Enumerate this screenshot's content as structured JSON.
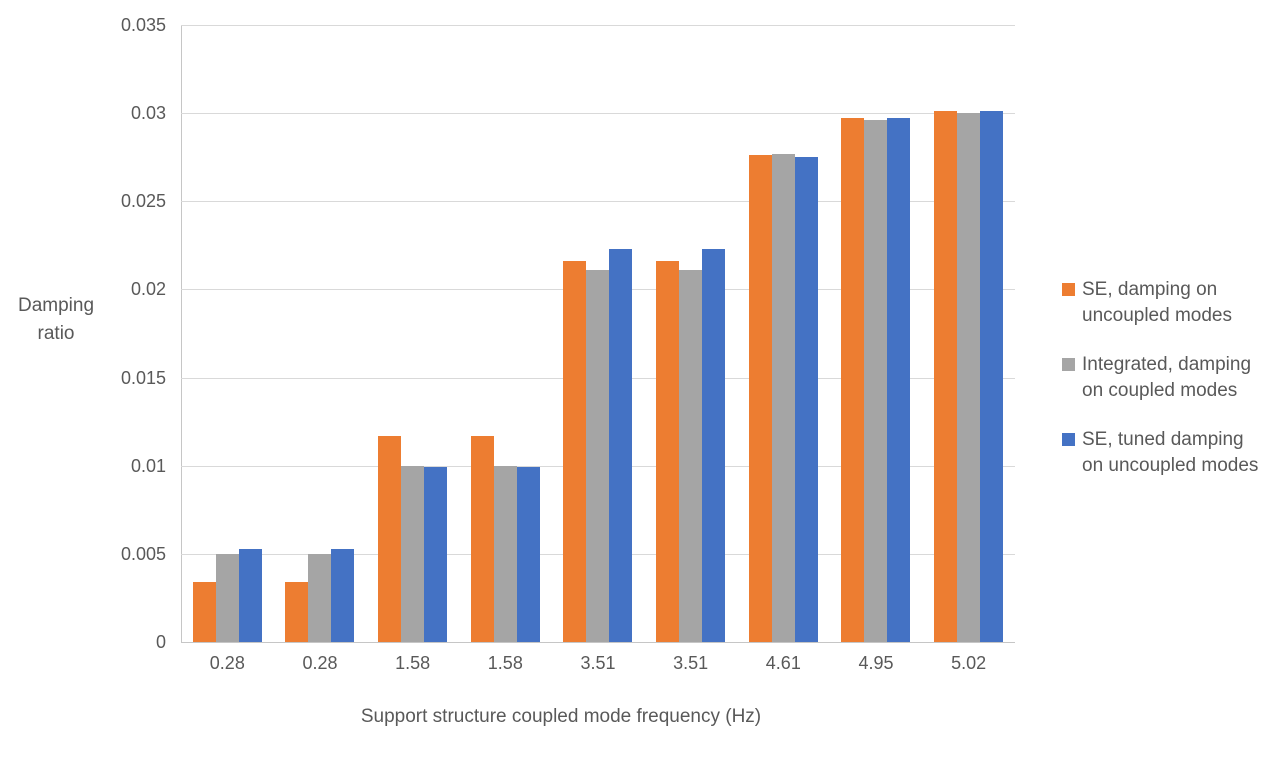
{
  "chart_data": {
    "type": "bar",
    "title": "",
    "categories": [
      "0.28",
      "0.28",
      "1.58",
      "1.58",
      "3.51",
      "3.51",
      "4.61",
      "4.95",
      "5.02"
    ],
    "series": [
      {
        "name": "SE, damping on uncoupled modes",
        "color": "#ED7D31",
        "values": [
          0.0034,
          0.0034,
          0.0117,
          0.0117,
          0.0216,
          0.0216,
          0.0276,
          0.0297,
          0.0301
        ]
      },
      {
        "name": "Integrated, damping on coupled modes",
        "color": "#A5A5A5",
        "values": [
          0.005,
          0.005,
          0.01,
          0.01,
          0.0211,
          0.0211,
          0.0277,
          0.0296,
          0.03
        ]
      },
      {
        "name": "SE, tuned damping on uncoupled modes",
        "color": "#4472C4",
        "values": [
          0.0053,
          0.0053,
          0.0099,
          0.0099,
          0.0223,
          0.0223,
          0.0275,
          0.0297,
          0.0301
        ]
      }
    ],
    "xlabel": "Support structure coupled mode frequency (Hz)",
    "ylabel": "Damping ratio",
    "ylim": [
      0,
      0.035
    ],
    "ytick_step": 0.005,
    "ytick_labels": [
      "0",
      "0.005",
      "0.01",
      "0.015",
      "0.02",
      "0.025",
      "0.03",
      "0.035"
    ],
    "grid": true,
    "legend_position": "right"
  },
  "colors": {
    "text": "#595959",
    "gridline": "#D9D9D9",
    "axis_line": "#C6C6C6",
    "background": "#FFFFFF"
  }
}
